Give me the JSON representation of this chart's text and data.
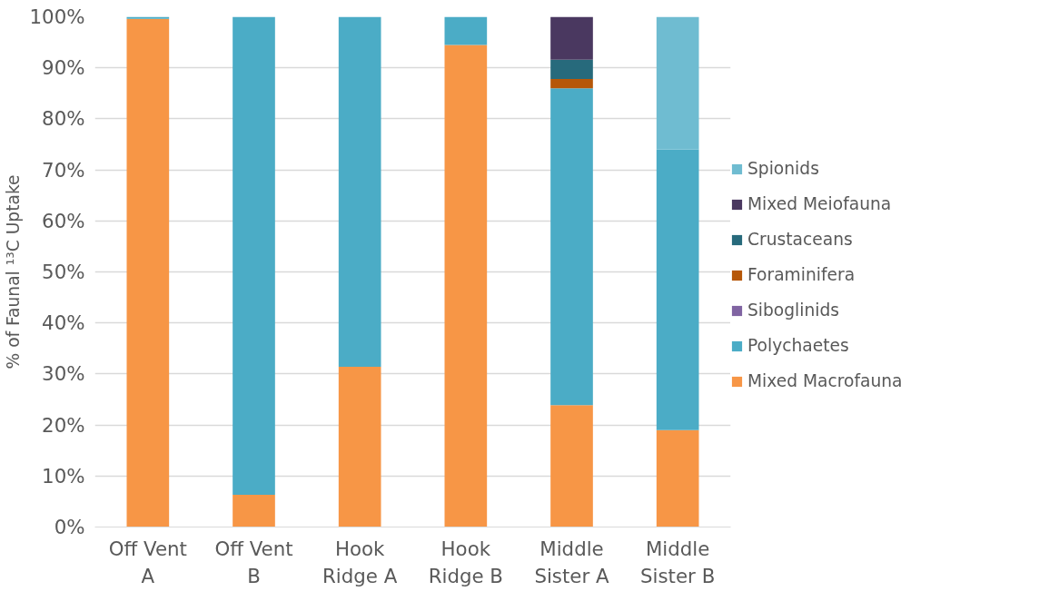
{
  "chart_data": {
    "type": "bar",
    "stacked": true,
    "ylabel": "% of Faunal ¹³C Uptake",
    "categories": [
      "Off Vent A",
      "Off Vent B",
      "Hook Ridge A",
      "Hook Ridge B",
      "Middle Sister A",
      "Middle Sister B"
    ],
    "series": [
      {
        "name": "Mixed Macrofauna",
        "color": "#f79646",
        "values": [
          99.6,
          6.3,
          31.4,
          94.5,
          23.9,
          19.0
        ]
      },
      {
        "name": "Polychaetes",
        "color": "#4bacc6",
        "values": [
          0.4,
          93.7,
          68.6,
          5.5,
          62.1,
          55.0
        ]
      },
      {
        "name": "Siboglinids",
        "color": "#8064a2",
        "values": [
          0,
          0,
          0,
          0,
          0,
          0
        ]
      },
      {
        "name": "Foraminifera",
        "color": "#b65708",
        "values": [
          0,
          0,
          0,
          0,
          1.8,
          0
        ]
      },
      {
        "name": "Crustaceans",
        "color": "#276a7c",
        "values": [
          0,
          0,
          0,
          0,
          3.8,
          0
        ]
      },
      {
        "name": "Mixed Meiofauna",
        "color": "#4a3860",
        "values": [
          0,
          0,
          0,
          0,
          8.4,
          0
        ]
      },
      {
        "name": "Spionids",
        "color": "#6fbcd1",
        "values": [
          0,
          0,
          0,
          0,
          0,
          26.0
        ]
      }
    ],
    "ylim": [
      0,
      100
    ],
    "yticks": [
      {
        "value": 0,
        "label": "0%"
      },
      {
        "value": 10,
        "label": "10%"
      },
      {
        "value": 20,
        "label": "20%"
      },
      {
        "value": 30,
        "label": "30%"
      },
      {
        "value": 40,
        "label": "40%"
      },
      {
        "value": 50,
        "label": "50%"
      },
      {
        "value": 60,
        "label": "60%"
      },
      {
        "value": 70,
        "label": "70%"
      },
      {
        "value": 80,
        "label": "80%"
      },
      {
        "value": 90,
        "label": "90%"
      },
      {
        "value": 100,
        "label": "100%"
      }
    ],
    "grid": "y",
    "legend": "right"
  }
}
